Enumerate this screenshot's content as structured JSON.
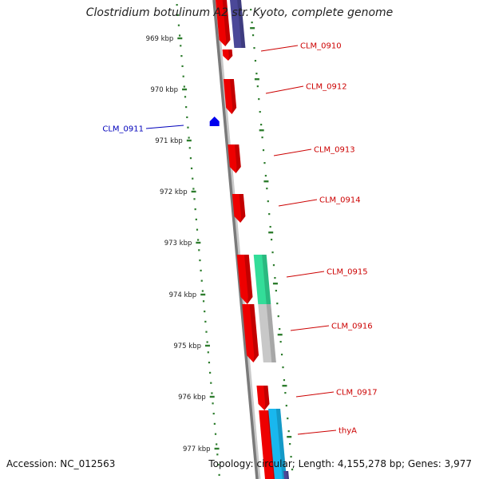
{
  "title": "Clostridium botulinum A2 str. Kyoto, complete genome",
  "accession_text": "Accession: NC_012563",
  "summary_text": "Topology: circular; Length: 4,155,278 bp; Genes: 3,977",
  "colors": {
    "backbone": "#808080",
    "tick": "#2e7d2e",
    "gene_forward": "#ee0000",
    "gene_reverse": "#0000ee",
    "label_forward": "#cc0000",
    "label_reverse": "#0000bb",
    "cog_navy": "#4b4898",
    "cog_green": "#33dd99",
    "cog_grey": "#c8c8c8",
    "cog_cyan": "#19b7ee"
  },
  "ticks": [
    {
      "label": "969 kbp"
    },
    {
      "label": "970 kbp"
    },
    {
      "label": "971 kbp"
    },
    {
      "label": "972 kbp"
    },
    {
      "label": "973 kbp"
    },
    {
      "label": "974 kbp"
    },
    {
      "label": "975 kbp"
    },
    {
      "label": "976 kbp"
    },
    {
      "label": "977 kbp"
    }
  ],
  "genes": [
    {
      "name": "CLM_0910",
      "strand": "forward"
    },
    {
      "name": "CLM_0911",
      "strand": "reverse"
    },
    {
      "name": "CLM_0912",
      "strand": "forward"
    },
    {
      "name": "CLM_0913",
      "strand": "forward"
    },
    {
      "name": "CLM_0914",
      "strand": "forward"
    },
    {
      "name": "CLM_0915",
      "strand": "forward"
    },
    {
      "name": "CLM_0916",
      "strand": "forward"
    },
    {
      "name": "CLM_0917",
      "strand": "forward"
    },
    {
      "name": "thyA",
      "strand": "forward"
    }
  ]
}
